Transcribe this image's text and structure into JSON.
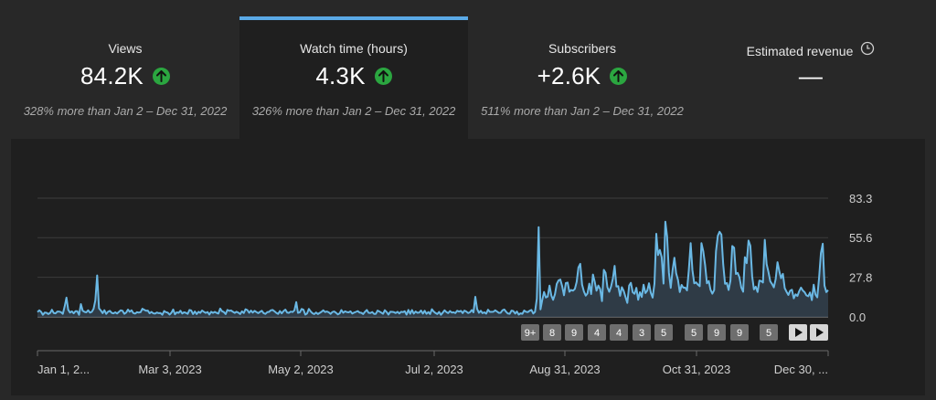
{
  "tabs": [
    {
      "title": "Views",
      "value": "84.2K",
      "sub": "328% more than Jan 2 – Dec 31, 2022",
      "trend": "up"
    },
    {
      "title": "Watch time (hours)",
      "value": "4.3K",
      "sub": "326% more than Jan 2 – Dec 31, 2022",
      "trend": "up",
      "selected": true
    },
    {
      "title": "Subscribers",
      "value": "+2.6K",
      "sub": "511% more than Jan 2 – Dec 31, 2022",
      "trend": "up"
    },
    {
      "title": "Estimated revenue",
      "value": "—",
      "icon": "clock-icon"
    }
  ],
  "colors": {
    "accent": "#5aa9e6",
    "up": "#2ba640",
    "line": "#6ab8e4"
  },
  "chart_data": {
    "type": "area",
    "series": [
      {
        "values": [
          3.4,
          4.6,
          3.5,
          1.5,
          3.0,
          2.9,
          2.0,
          2.8,
          5.0,
          2.7,
          2.5,
          3.8,
          3.7,
          3.3,
          2.1,
          7.2,
          13.5,
          5.0,
          3.0,
          3.9,
          2.5,
          4.0,
          4.0,
          1.5,
          9.0,
          4.3,
          3.5,
          3.2,
          4.6,
          3.0,
          3.5,
          5.7,
          11.6,
          29.1,
          6.0,
          4.5,
          2.6,
          4.7,
          2.1,
          3.6,
          4.2,
          2.8,
          2.5,
          3.2,
          2.4,
          3.5,
          4.6,
          4.3,
          2.2,
          3.0,
          5.1,
          3.6,
          4.6,
          2.7,
          2.3,
          3.3,
          3.0,
          3.3,
          5.7,
          5.0,
          4.3,
          4.4,
          2.5,
          3.5,
          2.5,
          2.3,
          3.1,
          2.6,
          2.7,
          1.5,
          4.1,
          3.3,
          3.0,
          1.6,
          2.9,
          5.2,
          1.8,
          3.2,
          2.8,
          4.3,
          2.4,
          3.2,
          2.9,
          2.1,
          4.9,
          4.5,
          2.0,
          3.8,
          2.0,
          3.6,
          2.8,
          4.5,
          3.5,
          2.8,
          3.4,
          1.6,
          3.6,
          2.8,
          3.5,
          2.8,
          2.3,
          5.8,
          4.0,
          3.4,
          2.0,
          4.9,
          4.2,
          4.5,
          3.6,
          2.8,
          3.6,
          3.0,
          2.0,
          3.9,
          2.7,
          5.3,
          4.8,
          2.9,
          4.4,
          3.0,
          4.2,
          3.4,
          2.6,
          3.5,
          4.3,
          2.6,
          2.1,
          3.3,
          3.5,
          4.6,
          4.9,
          3.9,
          2.8,
          2.1,
          4.1,
          2.5,
          4.1,
          5.1,
          3.0,
          2.8,
          3.7,
          3.4,
          4.6,
          10.4,
          2.8,
          3.2,
          5.6,
          5.0,
          1.6,
          2.4,
          5.6,
          3.8,
          2.5,
          2.0,
          3.1,
          2.0,
          2.8,
          3.6,
          4.6,
          3.4,
          3.8,
          3.2,
          2.1,
          3.4,
          3.8,
          2.9,
          1.8,
          2.5,
          4.8,
          2.9,
          3.9,
          3.4,
          3.2,
          3.9,
          2.3,
          3.0,
          3.5,
          4.1,
          3.1,
          2.9,
          2.0,
          3.6,
          4.9,
          2.9,
          2.7,
          3.4,
          2.1,
          2.1,
          4.4,
          3.8,
          3.0,
          2.2,
          4.7,
          3.4,
          1.6,
          3.6,
          3.5,
          3.3,
          2.7,
          3.6,
          2.4,
          3.6,
          3.3,
          4.0,
          1.6,
          4.9,
          2.2,
          4.8,
          2.3,
          3.8,
          2.9,
          3.1,
          4.5,
          2.3,
          4.3,
          2.2,
          3.4,
          2.0,
          5.4,
          3.7,
          2.7,
          2.0,
          3.5,
          1.5,
          3.0,
          4.6,
          3.4,
          2.6,
          4.1,
          3.0,
          3.2,
          2.7,
          4.3,
          3.7,
          4.2,
          2.7,
          4.4,
          3.8,
          2.7,
          3.2,
          4.8,
          3.2,
          14.1,
          5.5,
          2.9,
          4.3,
          2.6,
          3.2,
          2.3,
          5.0,
          3.5,
          3.5,
          3.6,
          4.6,
          3.7,
          2.8,
          2.9,
          4.6,
          5.2,
          3.6,
          2.4,
          2.2,
          4.4,
          4.1,
          2.4,
          3.8,
          1.6,
          2.5,
          2.2,
          4.5,
          3.6,
          3.3,
          4.3,
          4.9,
          2.4,
          3.5,
          12.8,
          63.0,
          5.3,
          12.1,
          17.5,
          13.6,
          14.3,
          22.0,
          14.9,
          12.0,
          15.8,
          23.2,
          25.6,
          26.2,
          21.6,
          15.2,
          23.7,
          24.1,
          17.6,
          18.9,
          18.4,
          19.6,
          24.6,
          34.6,
          37.2,
          22.7,
          17.9,
          14.9,
          16.4,
          23.3,
          16.0,
          29.7,
          24.4,
          18.4,
          22.0,
          19.5,
          11.1,
          33.0,
          30.9,
          20.8,
          17.6,
          21.3,
          26.9,
          35.8,
          21.3,
          21.6,
          14.8,
          20.8,
          18.3,
          14.0,
          9.8,
          22.0,
          23.9,
          17.3,
          16.2,
          20.4,
          12.0,
          17.3,
          14.0,
          22.6,
          16.7,
          18.4,
          23.6,
          16.9,
          13.5,
          23.4,
          58.3,
          43.4,
          47.0,
          41.9,
          23.4,
          66.8,
          56.6,
          31.0,
          20.4,
          32.7,
          41.5,
          30.7,
          26.0,
          17.4,
          22.4,
          20.5,
          20.6,
          18.6,
          33.0,
          51.7,
          33.0,
          23.5,
          24.2,
          22.7,
          21.5,
          51.7,
          46.0,
          36.4,
          23.5,
          25.2,
          19.1,
          16.3,
          18.8,
          46.0,
          56.9,
          59.7,
          57.8,
          36.9,
          23.2,
          23.8,
          18.9,
          25.4,
          49.7,
          48.6,
          30.1,
          30.9,
          27.7,
          20.6,
          17.7,
          41.9,
          37.7,
          53.6,
          49.9,
          28.4,
          19.3,
          21.2,
          17.5,
          25.5,
          25.1,
          24.1,
          54.1,
          37.1,
          31.5,
          24.9,
          23.1,
          20.7,
          26.5,
          38.4,
          32.0,
          27.2,
          30.2,
          20.2,
          17.6,
          15.4,
          18.3,
          19.0,
          13.0,
          15.8,
          14.7,
          18.0,
          20.6,
          18.5,
          17.3,
          15.1,
          14.5,
          17.1,
          11.8,
          22.6,
          15.7,
          13.7,
          27.4,
          44.8,
          51.3,
          22.0,
          17.4,
          18.8
        ]
      }
    ],
    "y_ticks": [
      "83.3",
      "55.6",
      "27.8",
      "0.0"
    ],
    "ylim": [
      0,
      83.3
    ],
    "x_ticks": [
      "Jan 1, 2...",
      "Mar 3, 2023",
      "May 2, 2023",
      "Jul 2, 2023",
      "Aug 31, 2023",
      "Oct 31, 2023",
      "Dec 30, ..."
    ],
    "grid": true
  },
  "badges": [
    "9+",
    "8",
    "9",
    "4",
    "4",
    "3",
    "5",
    "5",
    "9",
    "9",
    "5"
  ],
  "nav": [
    "play-icon",
    "play-icon"
  ]
}
